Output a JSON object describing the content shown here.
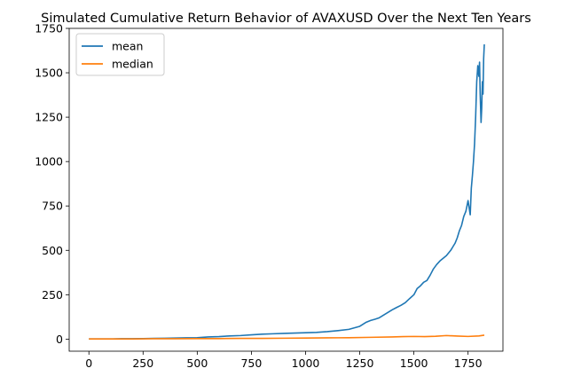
{
  "chart_data": {
    "type": "line",
    "title": "Simulated Cumulative Return Behavior of AVAXUSD Over the Next Ten Years",
    "xlabel": "",
    "ylabel": "",
    "xlim": [
      -91,
      1911
    ],
    "ylim": [
      -68,
      1750
    ],
    "x_ticks": [
      0,
      250,
      500,
      750,
      1000,
      1250,
      1500,
      1750
    ],
    "y_ticks": [
      0,
      250,
      500,
      750,
      1000,
      1250,
      1500,
      1750
    ],
    "grid": false,
    "legend_position": "top-left",
    "series": [
      {
        "name": "mean",
        "color": "#1f77b4",
        "points": [
          [
            0,
            1
          ],
          [
            50,
            1
          ],
          [
            100,
            1
          ],
          [
            150,
            2
          ],
          [
            200,
            2
          ],
          [
            250,
            3
          ],
          [
            300,
            4
          ],
          [
            350,
            5
          ],
          [
            400,
            6
          ],
          [
            450,
            7
          ],
          [
            500,
            8
          ],
          [
            550,
            12
          ],
          [
            600,
            14
          ],
          [
            650,
            18
          ],
          [
            700,
            20
          ],
          [
            750,
            24
          ],
          [
            800,
            28
          ],
          [
            850,
            30
          ],
          [
            900,
            32
          ],
          [
            950,
            34
          ],
          [
            1000,
            36
          ],
          [
            1050,
            38
          ],
          [
            1100,
            42
          ],
          [
            1150,
            48
          ],
          [
            1200,
            55
          ],
          [
            1250,
            72
          ],
          [
            1280,
            95
          ],
          [
            1300,
            105
          ],
          [
            1320,
            112
          ],
          [
            1340,
            120
          ],
          [
            1360,
            135
          ],
          [
            1380,
            150
          ],
          [
            1400,
            165
          ],
          [
            1420,
            178
          ],
          [
            1440,
            190
          ],
          [
            1460,
            205
          ],
          [
            1480,
            228
          ],
          [
            1500,
            250
          ],
          [
            1515,
            285
          ],
          [
            1530,
            300
          ],
          [
            1545,
            320
          ],
          [
            1560,
            330
          ],
          [
            1575,
            360
          ],
          [
            1590,
            395
          ],
          [
            1605,
            420
          ],
          [
            1620,
            440
          ],
          [
            1635,
            455
          ],
          [
            1650,
            470
          ],
          [
            1660,
            485
          ],
          [
            1670,
            500
          ],
          [
            1680,
            520
          ],
          [
            1690,
            540
          ],
          [
            1700,
            570
          ],
          [
            1710,
            610
          ],
          [
            1720,
            640
          ],
          [
            1730,
            690
          ],
          [
            1740,
            720
          ],
          [
            1750,
            780
          ],
          [
            1755,
            740
          ],
          [
            1760,
            700
          ],
          [
            1765,
            850
          ],
          [
            1770,
            920
          ],
          [
            1775,
            1000
          ],
          [
            1780,
            1100
          ],
          [
            1785,
            1250
          ],
          [
            1790,
            1450
          ],
          [
            1795,
            1540
          ],
          [
            1800,
            1480
          ],
          [
            1803,
            1560
          ],
          [
            1806,
            1380
          ],
          [
            1810,
            1220
          ],
          [
            1813,
            1300
          ],
          [
            1816,
            1450
          ],
          [
            1819,
            1380
          ],
          [
            1822,
            1580
          ],
          [
            1825,
            1660
          ]
        ]
      },
      {
        "name": "median",
        "color": "#ff7f0e",
        "points": [
          [
            0,
            1
          ],
          [
            100,
            1
          ],
          [
            200,
            1
          ],
          [
            300,
            2
          ],
          [
            400,
            2
          ],
          [
            500,
            3
          ],
          [
            600,
            3
          ],
          [
            700,
            4
          ],
          [
            800,
            4
          ],
          [
            900,
            5
          ],
          [
            1000,
            6
          ],
          [
            1100,
            7
          ],
          [
            1200,
            8
          ],
          [
            1300,
            10
          ],
          [
            1400,
            12
          ],
          [
            1450,
            14
          ],
          [
            1500,
            15
          ],
          [
            1550,
            14
          ],
          [
            1600,
            16
          ],
          [
            1650,
            20
          ],
          [
            1700,
            17
          ],
          [
            1750,
            15
          ],
          [
            1800,
            18
          ],
          [
            1825,
            22
          ]
        ]
      }
    ]
  }
}
